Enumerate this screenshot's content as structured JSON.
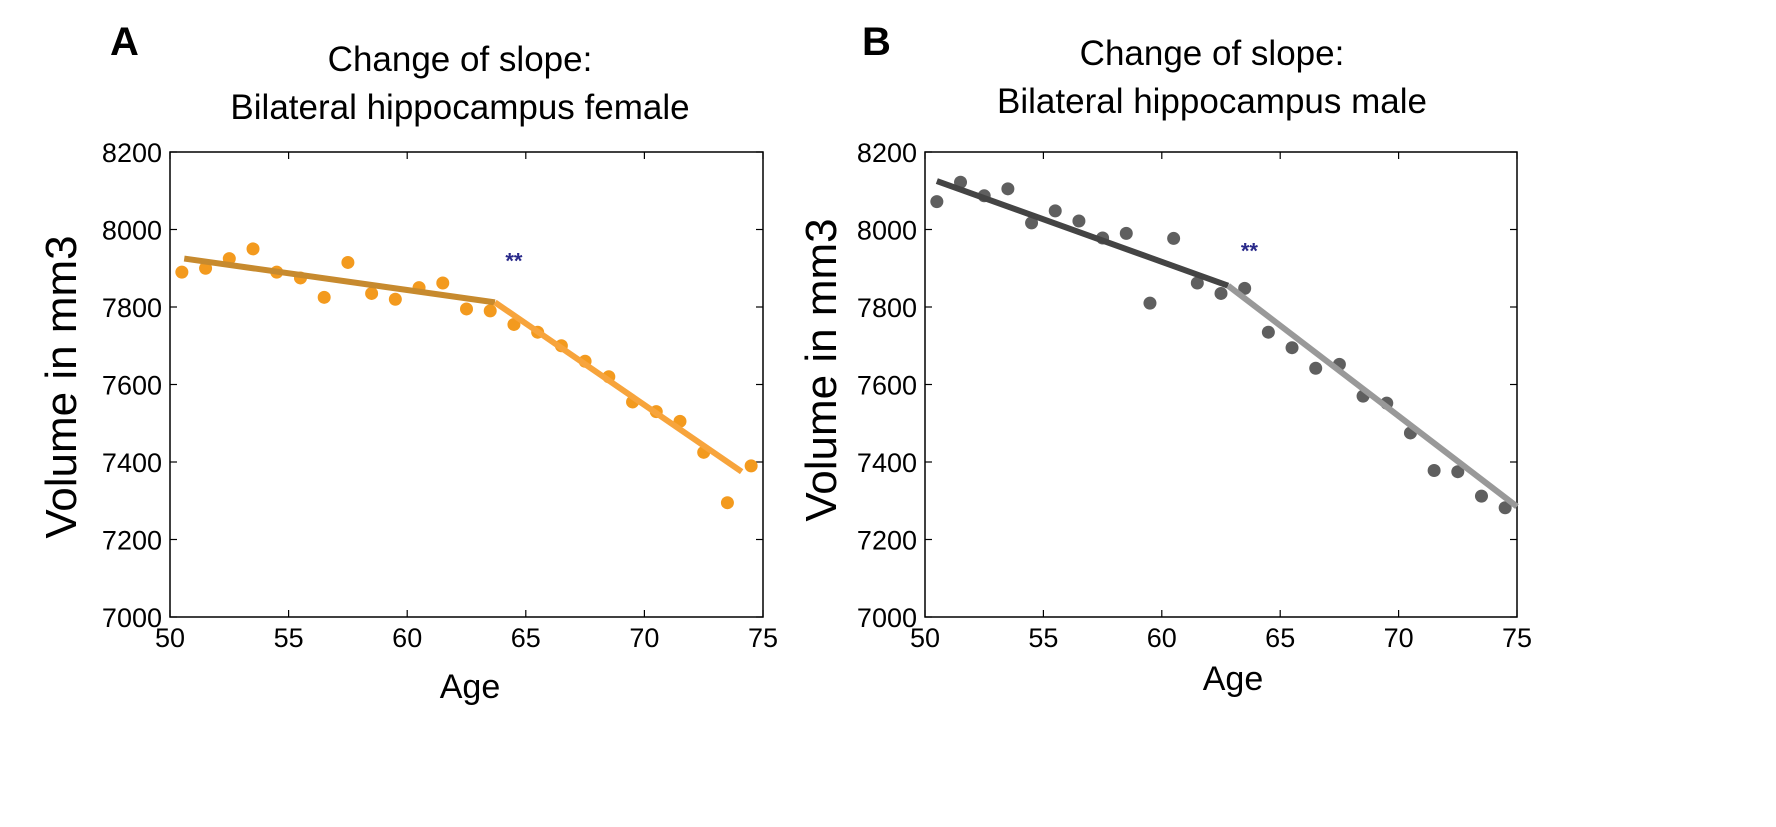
{
  "chart_data": [
    {
      "type": "scatter",
      "panel": "A",
      "title_line1": "Change of slope:",
      "title_line2": "Bilateral hippocampus female",
      "xlabel": "Age",
      "ylabel": "Volume in mm3",
      "xlim": [
        50,
        75
      ],
      "ylim": [
        7000,
        8200
      ],
      "xticks": [
        50,
        55,
        60,
        65,
        70,
        75
      ],
      "yticks": [
        7000,
        7200,
        7400,
        7600,
        7800,
        8000,
        8200
      ],
      "annotation": {
        "text": "**",
        "x": 64.5,
        "y": 7900,
        "color": "#2a2a8a"
      },
      "point_color": "#f39a1e",
      "points": [
        {
          "x": 50.5,
          "y": 7890
        },
        {
          "x": 51.5,
          "y": 7900
        },
        {
          "x": 52.5,
          "y": 7925
        },
        {
          "x": 53.5,
          "y": 7950
        },
        {
          "x": 54.5,
          "y": 7890
        },
        {
          "x": 55.5,
          "y": 7875
        },
        {
          "x": 56.5,
          "y": 7825
        },
        {
          "x": 57.5,
          "y": 7915
        },
        {
          "x": 58.5,
          "y": 7835
        },
        {
          "x": 59.5,
          "y": 7820
        },
        {
          "x": 60.5,
          "y": 7850
        },
        {
          "x": 61.5,
          "y": 7862
        },
        {
          "x": 62.5,
          "y": 7795
        },
        {
          "x": 63.5,
          "y": 7790
        },
        {
          "x": 64.5,
          "y": 7755
        },
        {
          "x": 65.5,
          "y": 7735
        },
        {
          "x": 66.5,
          "y": 7700
        },
        {
          "x": 67.5,
          "y": 7660
        },
        {
          "x": 68.5,
          "y": 7620
        },
        {
          "x": 69.5,
          "y": 7555
        },
        {
          "x": 70.5,
          "y": 7530
        },
        {
          "x": 71.5,
          "y": 7505
        },
        {
          "x": 72.5,
          "y": 7425
        },
        {
          "x": 73.5,
          "y": 7295
        },
        {
          "x": 74.5,
          "y": 7390
        }
      ],
      "fit_segments": [
        {
          "x": [
            50.6,
            63.7
          ],
          "y": [
            7925,
            7812
          ],
          "color": "#c78a2e"
        },
        {
          "x": [
            63.7,
            74.1
          ],
          "y": [
            7812,
            7375
          ],
          "color": "#f7a43c"
        }
      ]
    },
    {
      "type": "scatter",
      "panel": "B",
      "title_line1": "Change of slope:",
      "title_line2": "Bilateral hippocampus male",
      "xlabel": "Age",
      "ylabel": "Volume in mm3",
      "xlim": [
        50,
        75
      ],
      "ylim": [
        7000,
        8200
      ],
      "xticks": [
        50,
        55,
        60,
        65,
        70,
        75
      ],
      "yticks": [
        7000,
        7200,
        7400,
        7600,
        7800,
        8000,
        8200
      ],
      "annotation": {
        "text": "**",
        "x": 63.7,
        "y": 7925,
        "color": "#2a2a8a"
      },
      "point_color": "#5f5f5f",
      "points": [
        {
          "x": 50.5,
          "y": 8072
        },
        {
          "x": 51.5,
          "y": 8122
        },
        {
          "x": 52.5,
          "y": 8087
        },
        {
          "x": 53.5,
          "y": 8105
        },
        {
          "x": 54.5,
          "y": 8017
        },
        {
          "x": 55.5,
          "y": 8048
        },
        {
          "x": 56.5,
          "y": 8022
        },
        {
          "x": 57.5,
          "y": 7978
        },
        {
          "x": 58.5,
          "y": 7990
        },
        {
          "x": 59.5,
          "y": 7810
        },
        {
          "x": 60.5,
          "y": 7977
        },
        {
          "x": 61.5,
          "y": 7862
        },
        {
          "x": 62.5,
          "y": 7835
        },
        {
          "x": 63.5,
          "y": 7848
        },
        {
          "x": 64.5,
          "y": 7735
        },
        {
          "x": 65.5,
          "y": 7695
        },
        {
          "x": 66.5,
          "y": 7642
        },
        {
          "x": 67.5,
          "y": 7652
        },
        {
          "x": 68.5,
          "y": 7570
        },
        {
          "x": 69.5,
          "y": 7552
        },
        {
          "x": 70.5,
          "y": 7475
        },
        {
          "x": 71.5,
          "y": 7378
        },
        {
          "x": 72.5,
          "y": 7375
        },
        {
          "x": 73.5,
          "y": 7312
        },
        {
          "x": 74.5,
          "y": 7282
        }
      ],
      "fit_segments": [
        {
          "x": [
            50.5,
            62.8
          ],
          "y": [
            8125,
            7855
          ],
          "color": "#444444"
        },
        {
          "x": [
            62.8,
            75.0
          ],
          "y": [
            7855,
            7285
          ],
          "color": "#999999"
        }
      ]
    }
  ]
}
